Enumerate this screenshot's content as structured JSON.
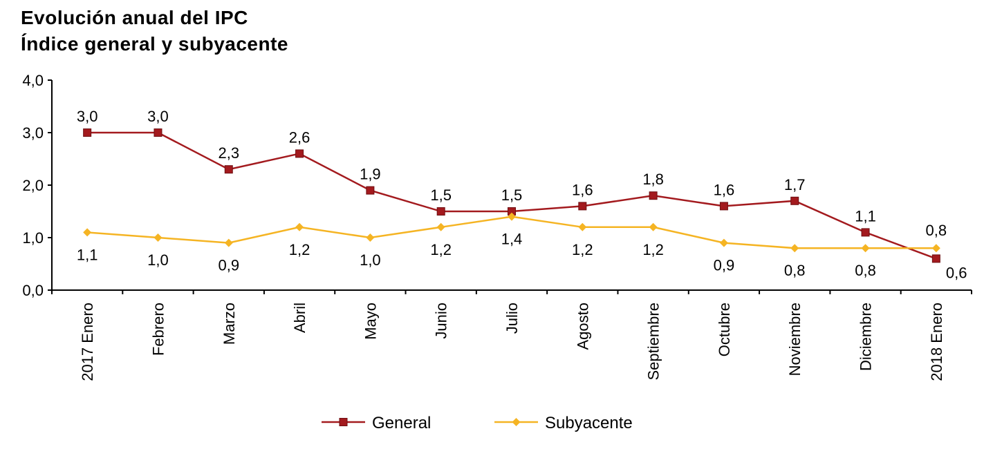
{
  "title_line1": "Evolución anual del IPC",
  "title_line2": "Índice general y subyacente",
  "chart_data": {
    "type": "line",
    "title": "Evolución anual del IPC",
    "subtitle": "Índice general y subyacente",
    "categories": [
      "2017 Enero",
      "Febrero",
      "Marzo",
      "Abril",
      "Mayo",
      "Junio",
      "Julio",
      "Agosto",
      "Septiembre",
      "Octubre",
      "Noviembre",
      "Diciembre",
      "2018 Enero"
    ],
    "series": [
      {
        "name": "General",
        "color": "#a31a1e",
        "marker": "square",
        "values": [
          3.0,
          3.0,
          2.3,
          2.6,
          1.9,
          1.5,
          1.5,
          1.6,
          1.8,
          1.6,
          1.7,
          1.1,
          0.6
        ],
        "labels": [
          "3,0",
          "3,0",
          "2,3",
          "2,6",
          "1,9",
          "1,5",
          "1,5",
          "1,6",
          "1,8",
          "1,6",
          "1,7",
          "1,1",
          "0,6"
        ]
      },
      {
        "name": "Subyacente",
        "color": "#f5b423",
        "marker": "diamond",
        "values": [
          1.1,
          1.0,
          0.9,
          1.2,
          1.0,
          1.2,
          1.4,
          1.2,
          1.2,
          0.9,
          0.8,
          0.8,
          0.8
        ],
        "labels": [
          "1,1",
          "1,0",
          "0,9",
          "1,2",
          "1,0",
          "1,2",
          "1,4",
          "1,2",
          "1,2",
          "0,9",
          "0,8",
          "0,8",
          "0,8"
        ]
      }
    ],
    "ylim": [
      0,
      4
    ],
    "yticks": [
      "0,0",
      "1,0",
      "2,0",
      "3,0",
      "4,0"
    ],
    "xlabel": "",
    "ylabel": "",
    "grid": false,
    "legend": "bottom"
  }
}
